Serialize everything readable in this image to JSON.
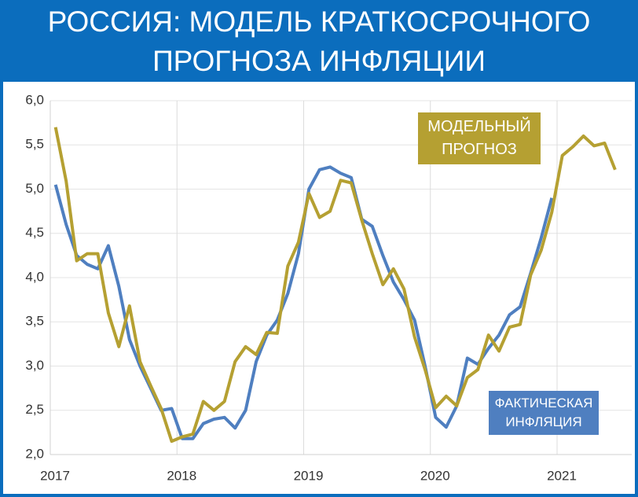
{
  "chart_data": {
    "type": "line",
    "title": [
      "РОССИЯ: МОДЕЛЬ КРАТКОСРОЧНОГО",
      "ПРОГНОЗА ИНФЛЯЦИИ"
    ],
    "categories": [
      "2017",
      null,
      null,
      null,
      null,
      null,
      null,
      null,
      null,
      null,
      null,
      null,
      "2018",
      null,
      null,
      null,
      null,
      null,
      null,
      null,
      null,
      null,
      null,
      null,
      "2019",
      null,
      null,
      null,
      null,
      null,
      null,
      null,
      null,
      null,
      null,
      null,
      "2020",
      null,
      null,
      null,
      null,
      null,
      null,
      null,
      null,
      null,
      null,
      null,
      "2021",
      null,
      null,
      null,
      null,
      null
    ],
    "series": [
      {
        "name": "ФАКТИЧЕСКАЯ ИНФЛЯЦИЯ",
        "color": "#4f7fc0",
        "values": [
          5.05,
          4.6,
          4.25,
          4.15,
          4.1,
          4.36,
          3.9,
          3.3,
          3.0,
          2.75,
          2.5,
          2.52,
          2.18,
          2.18,
          2.35,
          2.4,
          2.42,
          2.3,
          2.5,
          3.05,
          3.35,
          3.52,
          3.82,
          4.27,
          5.0,
          5.22,
          5.25,
          5.18,
          5.13,
          4.66,
          4.58,
          4.25,
          3.95,
          3.75,
          3.52,
          3.0,
          2.42,
          2.31,
          2.55,
          3.09,
          3.02,
          3.2,
          3.35,
          3.58,
          3.67,
          4.05,
          4.45,
          4.9,
          null,
          null,
          null,
          null,
          null,
          null
        ]
      },
      {
        "name": "МОДЕЛЬНЫЙ ПРОГНОЗ",
        "color": "#b5a032",
        "values": [
          5.7,
          5.09,
          4.19,
          4.27,
          4.27,
          3.6,
          3.22,
          3.68,
          3.05,
          2.78,
          2.52,
          2.15,
          2.2,
          2.23,
          2.6,
          2.5,
          2.6,
          3.05,
          3.22,
          3.13,
          3.38,
          3.37,
          4.13,
          4.4,
          4.95,
          4.68,
          4.75,
          5.1,
          5.07,
          4.65,
          4.27,
          3.92,
          4.1,
          3.87,
          3.33,
          2.96,
          2.53,
          2.66,
          2.55,
          2.87,
          2.96,
          3.35,
          3.17,
          3.44,
          3.47,
          4.03,
          4.31,
          4.74,
          5.38,
          5.48,
          5.6,
          5.49,
          5.52,
          5.22
        ]
      }
    ],
    "ylim": [
      2,
      6
    ],
    "yticks": [
      {
        "value": 2,
        "label": "2,0"
      },
      {
        "value": 2.5,
        "label": "2,5"
      },
      {
        "value": 3,
        "label": "3,0"
      },
      {
        "value": 3.5,
        "label": "3,5"
      },
      {
        "value": 4,
        "label": "4,0"
      },
      {
        "value": 4.5,
        "label": "4,5"
      },
      {
        "value": 5,
        "label": "5,0"
      },
      {
        "value": 5.5,
        "label": "5,5"
      },
      {
        "value": 6,
        "label": "6,0"
      }
    ],
    "grid": true
  }
}
